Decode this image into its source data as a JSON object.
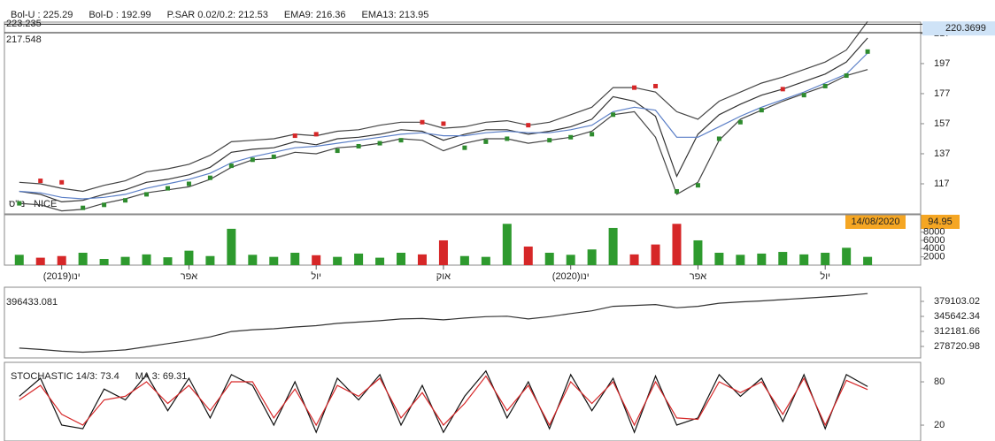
{
  "ticker": "ני\"ס - NICE",
  "date_label": "14/08/2020",
  "date_value": 94.95,
  "chart_data": [
    {
      "type": "line",
      "legend": [
        {
          "text": "Bol-U : 225.29",
          "color": "#d62728"
        },
        {
          "text": "Bol-D : 192.99",
          "color": "#2e8b2e"
        },
        {
          "text": "P.SAR 0.02/0.2: 212.53",
          "color": "#d62728"
        },
        {
          "text": "EMA9: 216.36",
          "color": "#5b7fc7"
        },
        {
          "text": "EMA13: 213.95",
          "color": "#222222"
        }
      ],
      "x": [
        0,
        0.5,
        1,
        1.5,
        2,
        2.5,
        3,
        3.5,
        4,
        4.5,
        5,
        5.5,
        6,
        6.5,
        7,
        7.5,
        8,
        8.5,
        9,
        9.5,
        10,
        10.5,
        11,
        11.5,
        12,
        12.5,
        13,
        13.5,
        14,
        14.5,
        15,
        15.5,
        16,
        16.5,
        17,
        17.5,
        18,
        18.5,
        19,
        19.5,
        20
      ],
      "xlim": [
        -0.35,
        21.25
      ],
      "series": [
        {
          "color": "#333333",
          "style": "line",
          "values": [
            112,
            110,
            105,
            106,
            110,
            113,
            118,
            120,
            123,
            128,
            138,
            140,
            141,
            145,
            143,
            147,
            148,
            150,
            153,
            152,
            146,
            150,
            153,
            153,
            150,
            152,
            155,
            160,
            175,
            172,
            162,
            122,
            150,
            163,
            170,
            176,
            180,
            185,
            190,
            198,
            214
          ]
        },
        {
          "color": "#444444",
          "style": "line",
          "values": [
            118,
            117,
            114,
            112,
            116,
            119,
            125,
            127,
            130,
            136,
            145,
            146,
            147,
            150,
            149,
            152,
            153,
            156,
            158,
            158,
            154,
            155,
            158,
            159,
            156,
            158,
            163,
            168,
            181,
            181,
            178,
            165,
            160,
            172,
            178,
            184,
            188,
            193,
            198,
            206,
            225
          ]
        },
        {
          "color": "#444444",
          "style": "line",
          "values": [
            104,
            103,
            99,
            100,
            104,
            107,
            111,
            113,
            115,
            120,
            128,
            133,
            134,
            138,
            137,
            141,
            142,
            144,
            147,
            146,
            139,
            144,
            147,
            147,
            144,
            146,
            148,
            152,
            163,
            165,
            148,
            110,
            118,
            146,
            160,
            166,
            172,
            177,
            182,
            189,
            193
          ]
        },
        {
          "color": "#5b7fc7",
          "style": "line",
          "values": [
            112,
            111,
            108,
            107,
            108,
            110,
            114,
            117,
            120,
            124,
            131,
            135,
            138,
            141,
            142,
            144,
            146,
            148,
            150,
            151,
            149,
            149,
            151,
            152,
            151,
            151,
            153,
            156,
            165,
            168,
            166,
            148,
            148,
            155,
            162,
            168,
            173,
            178,
            184,
            190,
            204
          ]
        },
        {
          "color": "#2e8b2e",
          "style": "markers",
          "values": [
            104,
            119,
            118,
            101,
            103,
            106,
            110,
            114,
            117,
            121,
            129,
            133,
            135,
            149,
            150,
            139,
            142,
            144,
            146,
            158,
            157,
            141,
            145,
            147,
            156,
            146,
            148,
            150,
            163,
            181,
            182,
            112,
            116,
            147,
            158,
            166,
            180,
            176,
            182,
            189,
            205
          ]
        }
      ],
      "ylim": [
        97,
        224.6
      ],
      "yticks": [
        117,
        137,
        157,
        177,
        197,
        217
      ],
      "hlines": [
        223.235,
        217.548
      ],
      "last_price": 220.3699
    },
    {
      "type": "bar",
      "up_color": "#2e9a2e",
      "down_color": "#d62728",
      "values": [
        2500,
        1800,
        2200,
        3000,
        1500,
        2000,
        2600,
        1900,
        3500,
        2200,
        8800,
        2500,
        2000,
        3000,
        2400,
        2000,
        2800,
        1800,
        3000,
        2600,
        6000,
        2200,
        2000,
        10000,
        4500,
        3000,
        2500,
        3800,
        9000,
        2600,
        5000,
        10000,
        6000,
        3000,
        2500,
        2800,
        3200,
        2600,
        3000,
        4200,
        2000
      ],
      "ylim": [
        0,
        12200
      ],
      "yticks": [
        2000,
        4000,
        6000,
        8000
      ],
      "xticks": [
        {
          "value": 1,
          "label": "ינו(2019)"
        },
        {
          "value": 4,
          "label": "אפר"
        },
        {
          "value": 7,
          "label": "יול"
        },
        {
          "value": 10,
          "label": "אוק"
        },
        {
          "value": 13,
          "label": "ינו(2020)"
        },
        {
          "value": 16,
          "label": "אפר"
        },
        {
          "value": 19,
          "label": "יול"
        }
      ]
    },
    {
      "type": "line",
      "color": "#333333",
      "last_value": 396433.081,
      "values": [
        275000,
        272000,
        268000,
        266000,
        268000,
        271000,
        278000,
        285000,
        292000,
        300000,
        312000,
        316000,
        318000,
        322000,
        325000,
        330000,
        333000,
        336000,
        340000,
        341000,
        338000,
        342000,
        345000,
        346000,
        340000,
        345000,
        352000,
        358000,
        368000,
        370000,
        372000,
        365000,
        368000,
        375000,
        378000,
        380000,
        383000,
        386000,
        389000,
        392000,
        396433.081
      ],
      "ylim": [
        253134,
        410597
      ],
      "yticks": [
        278720.98,
        312181.66,
        345642.34,
        379103.02
      ]
    },
    {
      "type": "line",
      "legend": [
        {
          "text": "STOCHASTIC 14/3: 73.4",
          "color": "#777777"
        },
        {
          "text": "MA 3: 69.31",
          "color": "#d62728"
        }
      ],
      "series": [
        {
          "color": "#111111",
          "values": [
            60,
            85,
            20,
            15,
            70,
            55,
            90,
            40,
            85,
            30,
            90,
            75,
            20,
            80,
            10,
            85,
            55,
            90,
            20,
            75,
            10,
            60,
            95,
            30,
            80,
            15,
            90,
            40,
            85,
            10,
            88,
            20,
            30,
            90,
            60,
            85,
            25,
            90,
            15,
            90,
            73.4
          ]
        },
        {
          "color": "#d62728",
          "values": [
            55,
            75,
            35,
            20,
            55,
            60,
            80,
            50,
            75,
            40,
            80,
            80,
            30,
            70,
            20,
            75,
            60,
            85,
            30,
            65,
            20,
            50,
            88,
            40,
            75,
            20,
            80,
            50,
            80,
            20,
            80,
            30,
            28,
            80,
            65,
            80,
            35,
            85,
            20,
            82,
            69.31
          ]
        }
      ],
      "ylim": [
        -2,
        107
      ],
      "yticks": [
        20,
        80
      ]
    }
  ]
}
